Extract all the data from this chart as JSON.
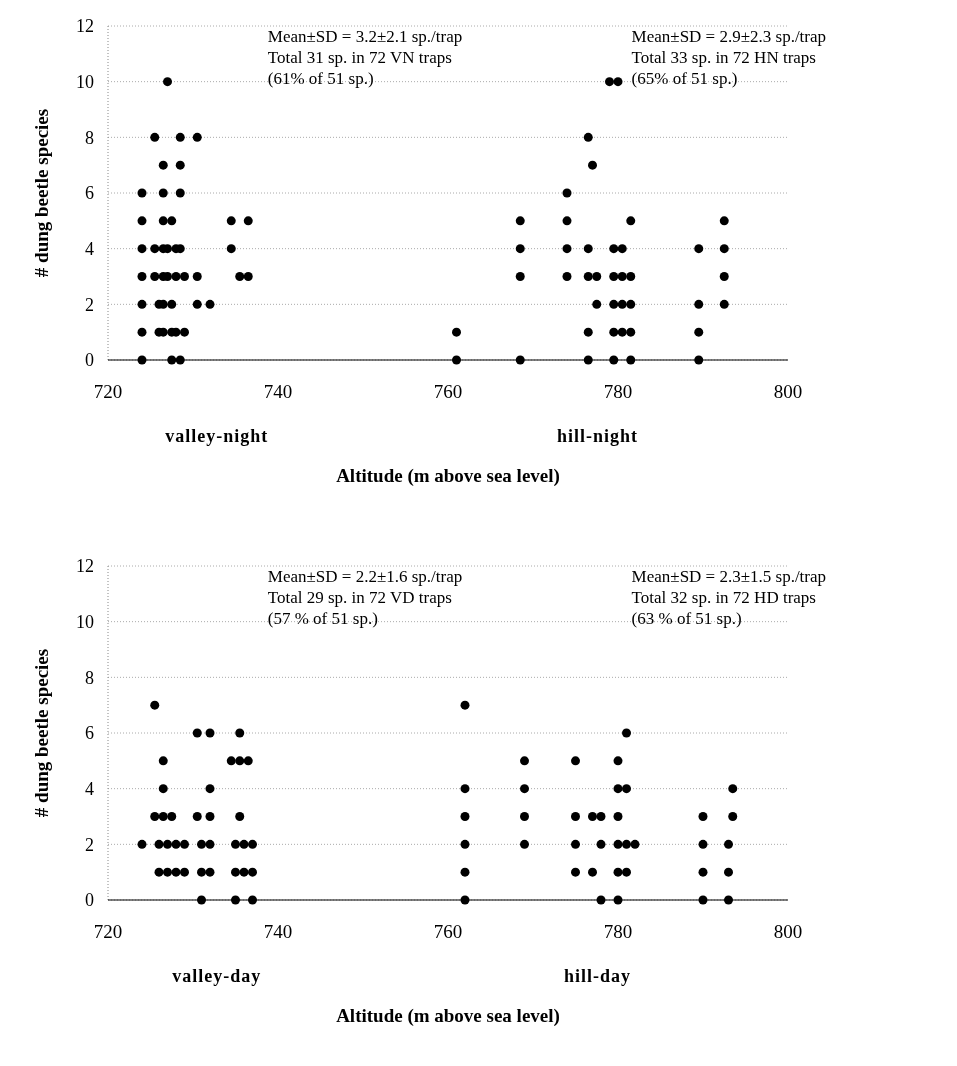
{
  "chart_data": [
    {
      "type": "scatter",
      "xlabel": "Altitude (m above sea level)",
      "ylabel": "# dung beetle species",
      "xlim": [
        720,
        800
      ],
      "xticks": [
        720,
        740,
        760,
        780,
        800
      ],
      "ylim": [
        0,
        12
      ],
      "yticks": [
        0,
        2,
        4,
        6,
        8,
        10,
        12
      ],
      "grid": "y",
      "marker": "circle",
      "annotations": [
        "Mean±SD = 3.2±2.1 sp./trap\nTotal 31 sp. in 72 VN traps\n(61% of 51 sp.)",
        "Mean±SD = 2.9±2.3 sp./trap\nTotal 33 sp. in 72 HN traps\n(65% of 51 sp.)",
        "valley-night",
        "hill-night"
      ],
      "series": [
        {
          "color": "#000000",
          "x": [
            727,
            725.5,
            728.5,
            730.5,
            726.5,
            728.5,
            724,
            726.5,
            728.5,
            724,
            726.5,
            727.5,
            734.5,
            736.5,
            724,
            725.5,
            726.5,
            727,
            728,
            728.5,
            734.5,
            724,
            725.5,
            726.5,
            727,
            728,
            729,
            730.5,
            735.5,
            736.5,
            724,
            726,
            726.5,
            727.5,
            730.5,
            732,
            724,
            726,
            726.5,
            727.5,
            728,
            729,
            724,
            727.5,
            728.5
          ],
          "values": [
            10,
            8,
            8,
            8,
            7,
            7,
            6,
            6,
            6,
            5,
            5,
            5,
            5,
            5,
            4,
            4,
            4,
            4,
            4,
            4,
            4,
            3,
            3,
            3,
            3,
            3,
            3,
            3,
            3,
            3,
            2,
            2,
            2,
            2,
            2,
            2,
            1,
            1,
            1,
            1,
            1,
            1,
            0,
            0,
            0
          ]
        },
        {
          "color": "#000000",
          "x": [
            779,
            780,
            776.5,
            777,
            774,
            768.5,
            774,
            781.5,
            792.5,
            768.5,
            774,
            776.5,
            779.5,
            780.5,
            789.5,
            792.5,
            768.5,
            774,
            776.5,
            777.5,
            779.5,
            780.5,
            781.5,
            792.5,
            777.5,
            779.5,
            780.5,
            781.5,
            789.5,
            792.5,
            761,
            776.5,
            779.5,
            780.5,
            781.5,
            789.5,
            761,
            768.5,
            776.5,
            779.5,
            781.5,
            789.5
          ],
          "values": [
            10,
            10,
            8,
            7,
            6,
            5,
            5,
            5,
            5,
            4,
            4,
            4,
            4,
            4,
            4,
            4,
            3,
            3,
            3,
            3,
            3,
            3,
            3,
            3,
            2,
            2,
            2,
            2,
            2,
            2,
            1,
            1,
            1,
            1,
            1,
            1,
            0,
            0,
            0,
            0,
            0,
            0
          ]
        }
      ]
    },
    {
      "type": "scatter",
      "xlabel": "Altitude (m above sea level)",
      "ylabel": "# dung beetle species",
      "xlim": [
        720,
        800
      ],
      "xticks": [
        720,
        740,
        760,
        780,
        800
      ],
      "ylim": [
        0,
        12
      ],
      "yticks": [
        0,
        2,
        4,
        6,
        8,
        10,
        12
      ],
      "grid": "y",
      "marker": "circle",
      "annotations": [
        "Mean±SD = 2.2±1.6 sp./trap\nTotal 29 sp. in 72 VD traps\n(57 % of 51 sp.)",
        "Mean±SD = 2.3±1.5 sp./trap\nTotal 32 sp. in 72 HD traps\n(63 % of 51 sp.)",
        "valley-day",
        "hill-day"
      ],
      "series": [
        {
          "color": "#000000",
          "x": [
            725.5,
            730.5,
            732,
            735.5,
            726.5,
            734.5,
            735.5,
            736.5,
            726.5,
            732,
            725.5,
            726.5,
            727.5,
            730.5,
            732,
            735.5,
            724,
            726,
            727,
            728,
            729,
            731,
            732,
            735,
            736,
            737,
            726,
            727,
            728,
            729,
            731,
            732,
            735,
            736,
            737,
            731,
            735,
            737
          ],
          "values": [
            7,
            6,
            6,
            6,
            5,
            5,
            5,
            5,
            4,
            4,
            3,
            3,
            3,
            3,
            3,
            3,
            2,
            2,
            2,
            2,
            2,
            2,
            2,
            2,
            2,
            2,
            1,
            1,
            1,
            1,
            1,
            1,
            1,
            1,
            1,
            0,
            0,
            0
          ]
        },
        {
          "color": "#000000",
          "x": [
            762,
            781,
            769,
            775,
            780,
            762,
            769,
            780,
            781,
            793.5,
            762,
            769,
            775,
            777,
            778,
            780,
            790,
            793.5,
            762,
            769,
            775,
            778,
            780,
            781,
            782,
            790,
            793,
            762,
            775,
            777,
            780,
            781,
            790,
            793,
            762,
            778,
            780,
            790,
            793
          ],
          "values": [
            7,
            6,
            5,
            5,
            5,
            4,
            4,
            4,
            4,
            4,
            3,
            3,
            3,
            3,
            3,
            3,
            3,
            3,
            2,
            2,
            2,
            2,
            2,
            2,
            2,
            2,
            2,
            1,
            1,
            1,
            1,
            1,
            1,
            1,
            0,
            0,
            0,
            0,
            0
          ]
        }
      ]
    }
  ]
}
